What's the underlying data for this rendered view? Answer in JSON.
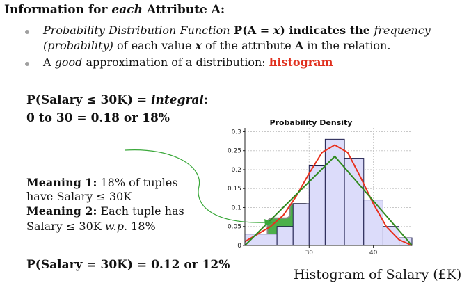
{
  "heading": {
    "prefix": "Information for ",
    "italic": "each",
    "suffix": " Attribute A:"
  },
  "bullet1": {
    "line1_a": "Probability Distribution Function",
    "line1_b": " P(A = ",
    "line1_c": "x",
    "line1_d": ") indicates the ",
    "line1_e": "frequency",
    "line2_a": "(probability)",
    "line2_b": " of each value ",
    "line2_c": "x",
    "line2_d": " of the attribute ",
    "line2_e": "A",
    "line2_f": " in the relation."
  },
  "bullet2": {
    "a": "A ",
    "b": "good",
    "c": " approximation of a distribution: ",
    "d": "histogram"
  },
  "integral": {
    "line1_a": "P(Salary ≤ 30K) = ",
    "line1_b": "integral",
    "line1_c": ":",
    "line2": "0 to 30 = 0.18 or 18%"
  },
  "meaning": {
    "m1_label": "Meaning 1:",
    "m1_text": " 18% of tuples",
    "m1_line2": "have Salary ≤ 30K",
    "m2_label": "Meaning 2:",
    "m2_text": " Each tuple has",
    "m2_line2_a": "Salary ≤ 30K ",
    "m2_line2_b": "w.p.",
    "m2_line2_c": " 18%"
  },
  "point_prob": "P(Salary = 30K) = 0.12 or 12%",
  "caption": "Histogram of Salary (£K)",
  "chart_data": {
    "type": "bar",
    "title": "Probability Density",
    "xlabel": "",
    "ylabel": "",
    "x_ticks": [
      30,
      40
    ],
    "y_ticks": [
      "0",
      "0.05",
      "0.1",
      "0.15",
      "0.2",
      "0.25",
      "0.3"
    ],
    "xlim": [
      20,
      46
    ],
    "ylim": [
      0,
      0.31
    ],
    "bars": [
      {
        "x0": 20,
        "x1": 25,
        "value": 0.03
      },
      {
        "x0": 25,
        "x1": 27.5,
        "value": 0.05
      },
      {
        "x0": 27.5,
        "x1": 30,
        "value": 0.11
      },
      {
        "x0": 30,
        "x1": 32.5,
        "value": 0.21
      },
      {
        "x0": 32.5,
        "x1": 35.5,
        "value": 0.28
      },
      {
        "x0": 35.5,
        "x1": 38.5,
        "value": 0.23
      },
      {
        "x0": 38.5,
        "x1": 41.5,
        "value": 0.12
      },
      {
        "x0": 41.5,
        "x1": 44,
        "value": 0.05
      },
      {
        "x0": 44,
        "x1": 46,
        "value": 0.02
      }
    ],
    "series": [
      {
        "points": [
          [
            20,
            0.01
          ],
          [
            22,
            0.03
          ],
          [
            24,
            0.05
          ],
          [
            26,
            0.08
          ],
          [
            28,
            0.13
          ],
          [
            30,
            0.19
          ],
          [
            32,
            0.245
          ],
          [
            34,
            0.265
          ],
          [
            36,
            0.245
          ],
          [
            38,
            0.18
          ],
          [
            40,
            0.11
          ],
          [
            42,
            0.05
          ],
          [
            44,
            0.015
          ],
          [
            46,
            0.0
          ]
        ],
        "color": "#e8301e"
      },
      {
        "points": [
          [
            20,
            0.0
          ],
          [
            34,
            0.235
          ],
          [
            46,
            0.0
          ]
        ],
        "color": "#2f8a1e"
      }
    ],
    "highlight": {
      "x0": 22,
      "x1": 30,
      "value": 0.11,
      "color": "#4cb04a"
    },
    "bar_color": "#dcdcfa",
    "bar_stroke": "#1a1a4a",
    "grid": true
  }
}
